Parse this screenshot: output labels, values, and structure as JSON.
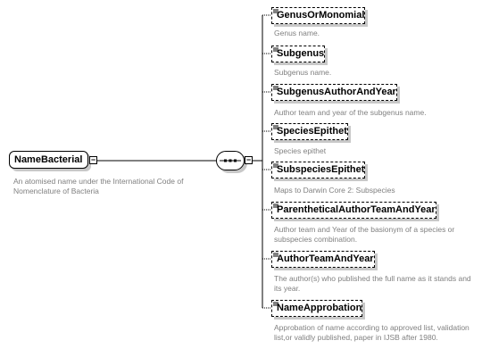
{
  "root": {
    "name": "NameBacterial",
    "description": "An atomised name under the International Code of Nomenclature of Bacteria"
  },
  "elements": [
    {
      "name": "GenusOrMonomial",
      "description": "Genus name."
    },
    {
      "name": "Subgenus",
      "description": "Subgenus name."
    },
    {
      "name": "SubgenusAuthorAndYear",
      "description": "Author team and year of the subgenus name."
    },
    {
      "name": "SpeciesEpithet",
      "description": "Species epithet"
    },
    {
      "name": "SubspeciesEpithet",
      "description": "Maps to Darwin Core 2: Subspecies"
    },
    {
      "name": "ParentheticalAuthorTeamAndYear",
      "description": "Author team and Year of the basionym of a species or subspecies combination."
    },
    {
      "name": "AuthorTeamAndYear",
      "description": "The author(s) who published the full name as it stands and its year."
    },
    {
      "name": "NameApprobation",
      "description": "Approbation of name according to approved list, validation list,or validly published, paper in IJSB after 1980."
    }
  ],
  "colors": {
    "line": "#000000",
    "description_text": "#808080",
    "shadow": "#c8c8c8"
  }
}
